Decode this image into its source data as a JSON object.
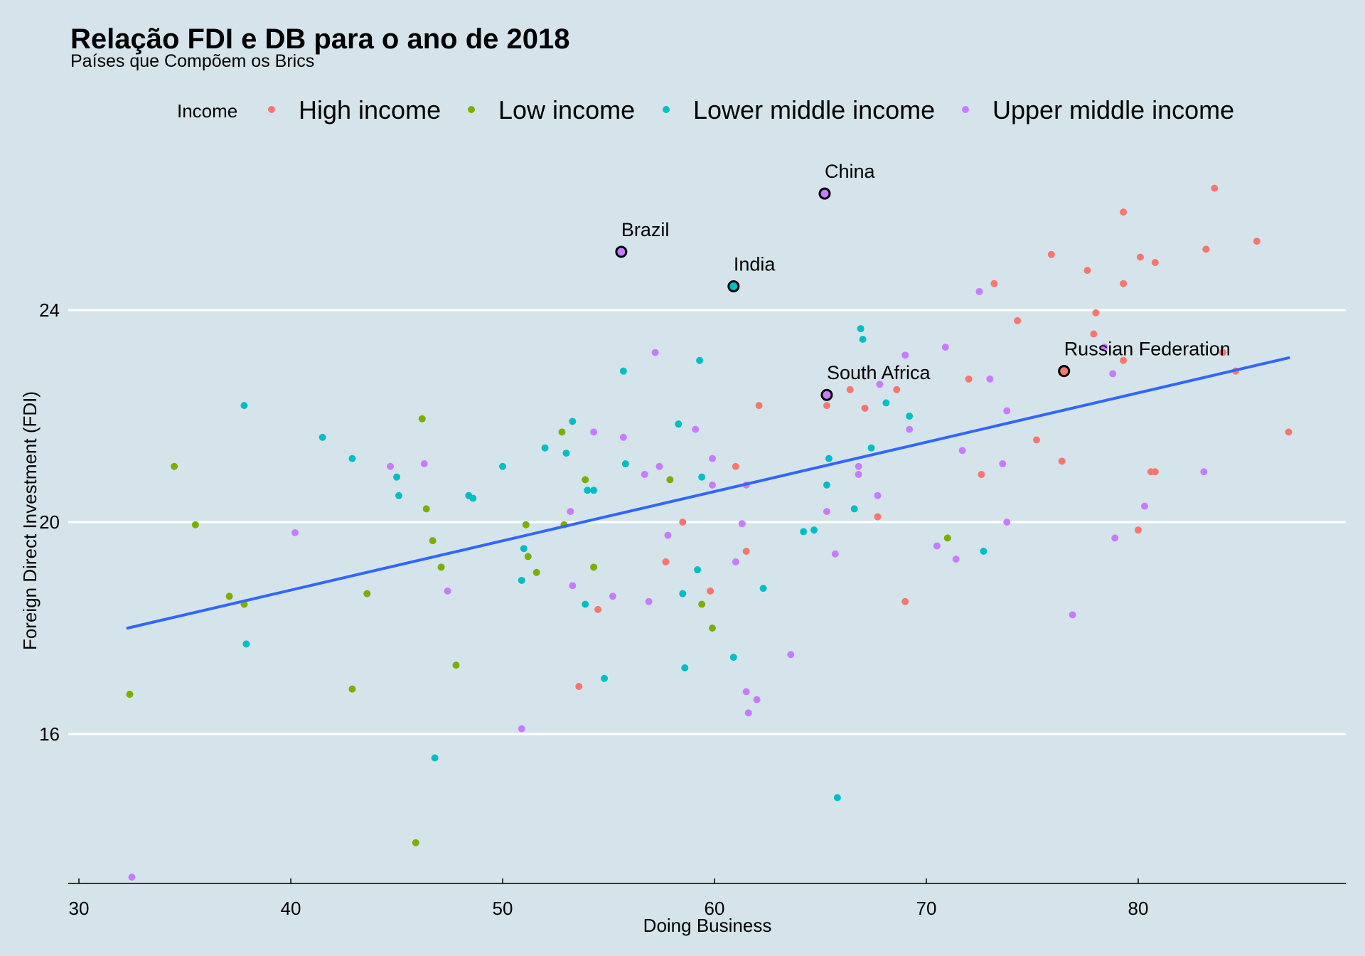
{
  "colors": {
    "background": "#d5e4eb",
    "gridline": "#ffffff",
    "fit_line": "#3366ff",
    "high_income": "#f8766d",
    "low_income": "#7cae00",
    "lower_middle_income": "#00bfc4",
    "upper_middle_income": "#c77cff",
    "highlight_ring": "#000000"
  },
  "chart_data": {
    "type": "scatter",
    "title": "Relação FDI e DB para o ano de 2018",
    "subtitle": "Países que Compõem os Brics",
    "xlabel": "Doing Business",
    "ylabel": "Foreign Direct Investment (FDI)",
    "xlim": [
      29.5,
      89.5
    ],
    "ylim": [
      13.2,
      27.9
    ],
    "xticks": [
      "30",
      "40",
      "50",
      "60",
      "70",
      "80"
    ],
    "yticks": [
      "16",
      "20",
      "24"
    ],
    "grid": "horizontal major only",
    "legend": {
      "title": "Income",
      "position": "top",
      "entries": [
        "High income",
        "Low income",
        "Lower middle income",
        "Upper middle income"
      ]
    },
    "series": [
      {
        "name": "High income",
        "points": [
          [
            83.6,
            26.3
          ],
          [
            85.6,
            25.3
          ],
          [
            79.3,
            25.85
          ],
          [
            75.9,
            25.05
          ],
          [
            83.2,
            25.15
          ],
          [
            80.1,
            25.0
          ],
          [
            80.8,
            24.9
          ],
          [
            77.6,
            24.75
          ],
          [
            73.2,
            24.5
          ],
          [
            79.3,
            24.5
          ],
          [
            78.0,
            23.95
          ],
          [
            74.3,
            23.8
          ],
          [
            77.9,
            23.55
          ],
          [
            84.0,
            23.2
          ],
          [
            79.3,
            23.05
          ],
          [
            76.5,
            22.8
          ],
          [
            84.6,
            22.85
          ],
          [
            72.0,
            22.7
          ],
          [
            68.6,
            22.5
          ],
          [
            66.4,
            22.5
          ],
          [
            65.3,
            22.2
          ],
          [
            62.1,
            22.2
          ],
          [
            67.1,
            22.15
          ],
          [
            87.1,
            21.7
          ],
          [
            75.2,
            21.55
          ],
          [
            76.4,
            21.15
          ],
          [
            61.0,
            21.05
          ],
          [
            72.6,
            20.9
          ],
          [
            80.8,
            20.95
          ],
          [
            80.6,
            20.95
          ],
          [
            67.7,
            20.1
          ],
          [
            58.5,
            20.0
          ],
          [
            80.0,
            19.85
          ],
          [
            61.5,
            19.45
          ],
          [
            57.7,
            19.25
          ],
          [
            59.8,
            18.7
          ],
          [
            69.0,
            18.5
          ],
          [
            54.5,
            18.35
          ],
          [
            53.6,
            16.9
          ]
        ]
      },
      {
        "name": "Low income",
        "points": [
          [
            46.2,
            21.95
          ],
          [
            52.8,
            21.7
          ],
          [
            34.5,
            21.05
          ],
          [
            53.9,
            20.8
          ],
          [
            57.9,
            20.8
          ],
          [
            46.4,
            20.25
          ],
          [
            35.5,
            19.95
          ],
          [
            51.1,
            19.95
          ],
          [
            52.9,
            19.95
          ],
          [
            46.7,
            19.65
          ],
          [
            71.0,
            19.7
          ],
          [
            51.2,
            19.35
          ],
          [
            47.1,
            19.15
          ],
          [
            54.3,
            19.15
          ],
          [
            51.6,
            19.05
          ],
          [
            43.6,
            18.65
          ],
          [
            37.1,
            18.6
          ],
          [
            37.8,
            18.45
          ],
          [
            59.4,
            18.45
          ],
          [
            59.9,
            18.0
          ],
          [
            47.8,
            17.3
          ],
          [
            42.9,
            16.85
          ],
          [
            32.4,
            16.75
          ],
          [
            45.9,
            13.95
          ]
        ]
      },
      {
        "name": "Lower middle income",
        "points": [
          [
            66.9,
            23.65
          ],
          [
            67.0,
            23.45
          ],
          [
            59.3,
            23.05
          ],
          [
            55.7,
            22.85
          ],
          [
            37.8,
            22.2
          ],
          [
            68.1,
            22.25
          ],
          [
            69.2,
            22.0
          ],
          [
            53.3,
            21.9
          ],
          [
            58.3,
            21.85
          ],
          [
            41.5,
            21.6
          ],
          [
            52.0,
            21.4
          ],
          [
            67.4,
            21.4
          ],
          [
            53.0,
            21.3
          ],
          [
            42.9,
            21.2
          ],
          [
            65.4,
            21.2
          ],
          [
            55.8,
            21.1
          ],
          [
            50.0,
            21.05
          ],
          [
            45.0,
            20.85
          ],
          [
            59.4,
            20.85
          ],
          [
            65.3,
            20.7
          ],
          [
            54.0,
            20.6
          ],
          [
            54.3,
            20.6
          ],
          [
            45.1,
            20.5
          ],
          [
            48.4,
            20.5
          ],
          [
            48.6,
            20.45
          ],
          [
            66.6,
            20.25
          ],
          [
            64.7,
            19.85
          ],
          [
            64.2,
            19.82
          ],
          [
            51.0,
            19.5
          ],
          [
            72.7,
            19.45
          ],
          [
            59.2,
            19.1
          ],
          [
            50.9,
            18.9
          ],
          [
            62.3,
            18.75
          ],
          [
            58.5,
            18.65
          ],
          [
            53.9,
            18.45
          ],
          [
            37.9,
            17.7
          ],
          [
            60.9,
            17.45
          ],
          [
            58.6,
            17.25
          ],
          [
            54.8,
            17.05
          ],
          [
            46.8,
            15.55
          ],
          [
            65.8,
            14.8
          ]
        ]
      },
      {
        "name": "Upper middle income",
        "points": [
          [
            72.5,
            24.35
          ],
          [
            70.9,
            23.3
          ],
          [
            78.4,
            23.3
          ],
          [
            57.2,
            23.2
          ],
          [
            69.0,
            23.15
          ],
          [
            78.8,
            22.8
          ],
          [
            73.0,
            22.7
          ],
          [
            67.8,
            22.6
          ],
          [
            73.8,
            22.1
          ],
          [
            69.2,
            21.75
          ],
          [
            54.3,
            21.7
          ],
          [
            59.1,
            21.75
          ],
          [
            55.7,
            21.6
          ],
          [
            71.7,
            21.35
          ],
          [
            59.9,
            21.2
          ],
          [
            46.3,
            21.1
          ],
          [
            44.7,
            21.05
          ],
          [
            57.4,
            21.05
          ],
          [
            73.6,
            21.1
          ],
          [
            66.8,
            21.05
          ],
          [
            66.8,
            20.9
          ],
          [
            56.7,
            20.9
          ],
          [
            83.1,
            20.95
          ],
          [
            59.9,
            20.7
          ],
          [
            61.5,
            20.7
          ],
          [
            67.7,
            20.5
          ],
          [
            80.3,
            20.3
          ],
          [
            53.2,
            20.2
          ],
          [
            65.3,
            20.2
          ],
          [
            73.8,
            20.0
          ],
          [
            61.3,
            19.97
          ],
          [
            40.2,
            19.8
          ],
          [
            57.8,
            19.75
          ],
          [
            78.9,
            19.7
          ],
          [
            70.5,
            19.55
          ],
          [
            65.7,
            19.4
          ],
          [
            71.4,
            19.3
          ],
          [
            61.0,
            19.25
          ],
          [
            53.3,
            18.8
          ],
          [
            47.4,
            18.7
          ],
          [
            55.2,
            18.6
          ],
          [
            56.9,
            18.5
          ],
          [
            76.9,
            18.25
          ],
          [
            63.6,
            17.5
          ],
          [
            61.5,
            16.8
          ],
          [
            62.0,
            16.65
          ],
          [
            61.6,
            16.4
          ],
          [
            50.9,
            16.1
          ],
          [
            32.5,
            13.3
          ]
        ]
      }
    ],
    "highlighted": [
      {
        "label": "Brazil",
        "income": "Upper middle income",
        "x": 55.6,
        "y": 25.1
      },
      {
        "label": "China",
        "income": "Upper middle income",
        "x": 65.2,
        "y": 26.2
      },
      {
        "label": "India",
        "income": "Lower middle income",
        "x": 60.9,
        "y": 24.45
      },
      {
        "label": "South Africa",
        "income": "Upper middle income",
        "x": 65.3,
        "y": 22.4
      },
      {
        "label": "Russian Federation",
        "income": "High income",
        "x": 76.5,
        "y": 22.85
      }
    ],
    "fit_line": {
      "x": [
        32.3,
        87.1
      ],
      "y": [
        18.0,
        23.1
      ]
    }
  }
}
